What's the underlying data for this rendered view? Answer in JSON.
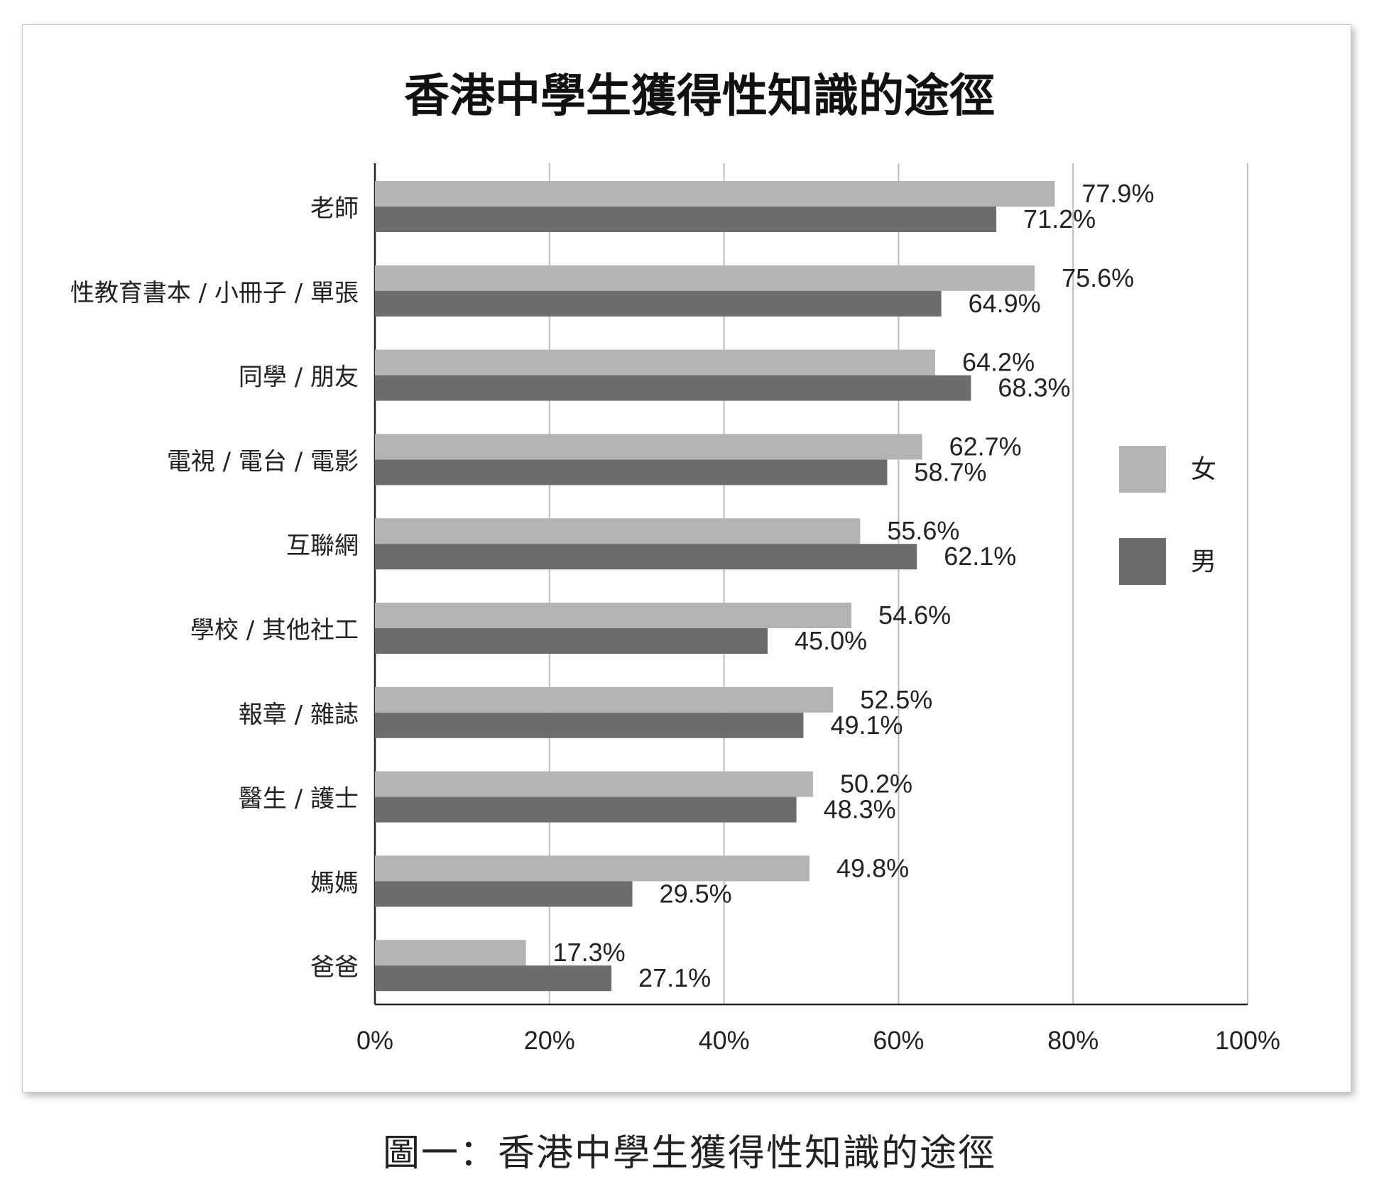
{
  "caption": "圖一：香港中學生獲得性知識的途徑",
  "chart_data": {
    "type": "bar",
    "orientation": "horizontal",
    "title": "香港中學生獲得性知識的途徑",
    "categories": [
      "老師",
      "性教育書本 / 小冊子 / 單張",
      "同學 / 朋友",
      "電視 / 電台 / 電影",
      "互聯網",
      "學校 / 其他社工",
      "報章 / 雜誌",
      "醫生 / 護士",
      "媽媽",
      "爸爸"
    ],
    "series": [
      {
        "name": "女",
        "color": "#b3b3b3",
        "values": [
          77.9,
          75.6,
          64.2,
          62.7,
          55.6,
          54.6,
          52.5,
          50.2,
          49.8,
          17.3
        ],
        "labels": [
          "77.9%",
          "75.6%",
          "64.2%",
          "62.7%",
          "55.6%",
          "54.6%",
          "52.5%",
          "50.2%",
          "49.8%",
          "17.3%"
        ]
      },
      {
        "name": "男",
        "color": "#6d6d6d",
        "values": [
          71.2,
          64.9,
          68.3,
          58.7,
          62.1,
          45.0,
          49.1,
          48.3,
          29.5,
          27.1
        ],
        "labels": [
          "71.2%",
          "64.9%",
          "68.3%",
          "58.7%",
          "62.1%",
          "45.0%",
          "49.1%",
          "48.3%",
          "29.5%",
          "27.1%"
        ]
      }
    ],
    "xlim": [
      0,
      100
    ],
    "xticks": [
      0,
      20,
      40,
      60,
      80,
      100
    ],
    "xtick_labels": [
      "0%",
      "20%",
      "40%",
      "60%",
      "80%",
      "100%"
    ],
    "grid": true,
    "legend": "right"
  }
}
